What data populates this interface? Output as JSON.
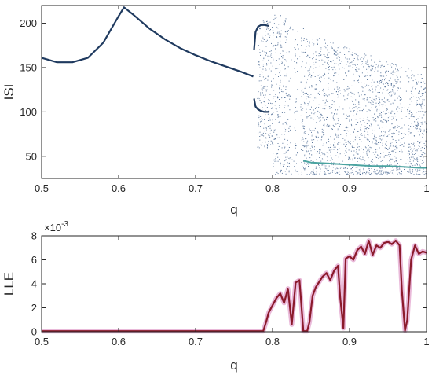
{
  "chart_data": [
    {
      "type": "scatter",
      "xlabel": "q",
      "ylabel": "ISI",
      "xlim": [
        0.5,
        1.0
      ],
      "ylim": [
        25,
        220
      ],
      "xticks": [
        "0.5",
        "0.6",
        "0.7",
        "0.8",
        "0.9",
        "1"
      ],
      "yticks": [
        "50",
        "100",
        "150",
        "200"
      ],
      "grid": false,
      "colors": {
        "main": "#1f3a5f",
        "scatter": "#2b4f7f",
        "accent": "#4aa3a0"
      },
      "series": [
        {
          "x": [
            0.5,
            0.52,
            0.54,
            0.56,
            0.58,
            0.6,
            0.607,
            0.62,
            0.64,
            0.66,
            0.68,
            0.7,
            0.72,
            0.74,
            0.76,
            0.775
          ],
          "y": [
            161,
            156,
            156,
            161,
            178,
            208,
            218,
            209,
            194,
            182,
            172,
            164,
            157,
            151,
            145,
            140
          ]
        },
        {
          "x": [
            0.776,
            0.778,
            0.781,
            0.785,
            0.79,
            0.795
          ],
          "y": [
            170,
            190,
            196,
            198,
            198,
            197
          ]
        },
        {
          "x": [
            0.776,
            0.778,
            0.781,
            0.785,
            0.79,
            0.795
          ],
          "y": [
            115,
            106,
            103,
            101,
            100,
            100
          ]
        },
        {
          "x": [
            0.84,
            0.85,
            0.87,
            0.89,
            0.91,
            0.93,
            0.95,
            0.97,
            0.99,
            1.0
          ],
          "y": [
            45,
            43,
            42,
            41,
            40,
            39,
            39,
            38,
            37,
            37
          ]
        }
      ]
    },
    {
      "type": "line",
      "xlabel": "q",
      "ylabel": "LLE",
      "multiplier": "×10",
      "multiplier_exp": "-3",
      "xlim": [
        0.5,
        1.0
      ],
      "ylim": [
        0,
        8
      ],
      "xticks": [
        "0.5",
        "0.6",
        "0.7",
        "0.8",
        "0.9",
        "1"
      ],
      "yticks": [
        "0",
        "2",
        "4",
        "6",
        "8"
      ],
      "grid": false,
      "colors": {
        "line": "#8b1a2b",
        "band": "#e3a7cf"
      },
      "series": [
        {
          "x": [
            0.5,
            0.7,
            0.788,
            0.792,
            0.795,
            0.8,
            0.805,
            0.81,
            0.815,
            0.82,
            0.825,
            0.83,
            0.835,
            0.838,
            0.84,
            0.845,
            0.848,
            0.852,
            0.856,
            0.86,
            0.865,
            0.87,
            0.875,
            0.88,
            0.885,
            0.888,
            0.892,
            0.895,
            0.9,
            0.905,
            0.91,
            0.915,
            0.92,
            0.925,
            0.93,
            0.935,
            0.94,
            0.945,
            0.95,
            0.955,
            0.96,
            0.965,
            0.968,
            0.972,
            0.975,
            0.98,
            0.985,
            0.99,
            0.995,
            1.0
          ],
          "y": [
            0.05,
            0.05,
            0.05,
            0.9,
            1.6,
            2.2,
            2.8,
            3.2,
            2.4,
            3.6,
            0.6,
            4.1,
            4.3,
            1.8,
            0.05,
            0.05,
            0.8,
            3.0,
            3.7,
            4.1,
            4.6,
            4.9,
            4.3,
            5.1,
            5.5,
            2.8,
            0.3,
            6.1,
            6.3,
            6.0,
            6.8,
            7.1,
            6.5,
            7.6,
            6.4,
            7.2,
            7.0,
            7.4,
            7.5,
            7.3,
            7.6,
            7.2,
            3.5,
            0.1,
            1.0,
            6.0,
            7.2,
            6.5,
            6.7,
            6.6
          ]
        }
      ]
    }
  ]
}
